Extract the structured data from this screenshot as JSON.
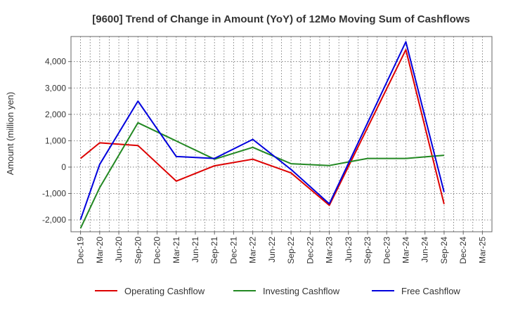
{
  "chart_data": {
    "type": "line",
    "title": "[9600]  Trend of Change in Amount (YoY) of 12Mo Moving Sum of Cashflows",
    "xlabel": "",
    "ylabel": "Amount (million yen)",
    "ylim": [
      -2450,
      4950
    ],
    "yticks": [
      -2000,
      -1000,
      0,
      1000,
      2000,
      3000,
      4000
    ],
    "ytick_labels": [
      "-2,000",
      "-1,000",
      "0",
      "1,000",
      "2,000",
      "3,000",
      "4,000"
    ],
    "categories": [
      "Dec-19",
      "Mar-20",
      "Jun-20",
      "Sep-20",
      "Dec-20",
      "Mar-21",
      "Jun-21",
      "Sep-21",
      "Dec-21",
      "Mar-22",
      "Jun-22",
      "Sep-22",
      "Dec-22",
      "Mar-23",
      "Jun-23",
      "Sep-23",
      "Dec-23",
      "Mar-24",
      "Jun-24",
      "Sep-24",
      "Dec-24",
      "Mar-25"
    ],
    "grid": true,
    "legend_position": "bottom",
    "series": [
      {
        "name": "Operating Cashflow",
        "color": "#dd0000",
        "points": [
          [
            0,
            330
          ],
          [
            1,
            920
          ],
          [
            3,
            820
          ],
          [
            5,
            -530
          ],
          [
            7,
            50
          ],
          [
            9,
            300
          ],
          [
            11,
            -220
          ],
          [
            13,
            -1450
          ],
          [
            17,
            4450
          ],
          [
            19,
            -1400
          ]
        ]
      },
      {
        "name": "Investing Cashflow",
        "color": "#228822",
        "points": [
          [
            0,
            -2320
          ],
          [
            1,
            -780
          ],
          [
            3,
            1680
          ],
          [
            7,
            300
          ],
          [
            9,
            750
          ],
          [
            11,
            130
          ],
          [
            13,
            60
          ],
          [
            15,
            330
          ],
          [
            17,
            330
          ],
          [
            19,
            450
          ]
        ]
      },
      {
        "name": "Free Cashflow",
        "color": "#0000dd",
        "points": [
          [
            0,
            -1990
          ],
          [
            1,
            100
          ],
          [
            3,
            2500
          ],
          [
            5,
            400
          ],
          [
            7,
            330
          ],
          [
            9,
            1050
          ],
          [
            11,
            -90
          ],
          [
            13,
            -1390
          ],
          [
            17,
            4750
          ],
          [
            19,
            -950
          ]
        ]
      }
    ]
  }
}
